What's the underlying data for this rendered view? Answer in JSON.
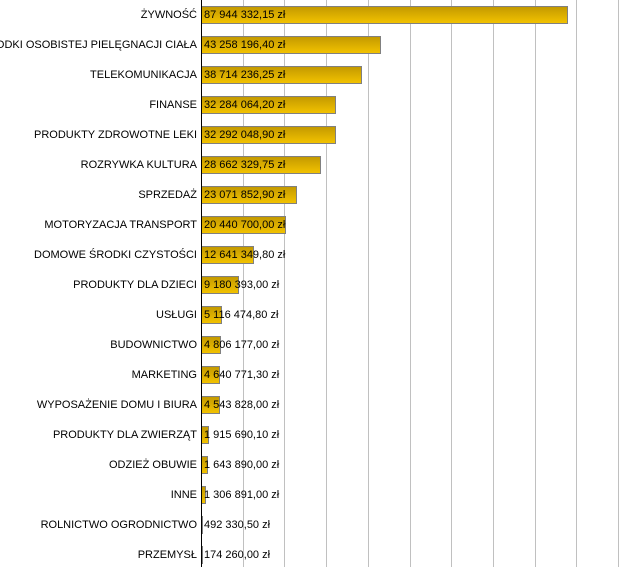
{
  "chart_data": {
    "type": "bar",
    "orientation": "horizontal",
    "title": "",
    "xlabel": "",
    "ylabel": "",
    "xlim": [
      0,
      100000000
    ],
    "grid": true,
    "grid_step": 10000000,
    "bar_color": "#e0b000",
    "categories": [
      "ŻYWNOŚĆ",
      "ŚRODKI OSOBISTEJ PIELĘGNACJI CIAŁA",
      "TELEKOMUNIKACJA",
      "FINANSE",
      "PRODUKTY ZDROWOTNE LEKI",
      "ROZRYWKA KULTURA",
      "SPRZEDAŻ",
      "MOTORYZACJA TRANSPORT",
      "DOMOWE ŚRODKI CZYSTOŚCI",
      "PRODUKTY DLA DZIECI",
      "USŁUGI",
      "BUDOWNICTWO",
      "MARKETING",
      "WYPOSAŻENIE DOMU I BIURA",
      "PRODUKTY DLA ZWIERZĄT",
      "ODZIEŻ OBUWIE",
      "INNE",
      "ROLNICTWO OGRODNICTWO",
      "PRZEMYSŁ"
    ],
    "values": [
      87944332.15,
      43258196.4,
      38714236.25,
      32284064.2,
      32292048.9,
      28662329.75,
      23071852.9,
      20440700.0,
      12641349.8,
      9180393.0,
      5116474.8,
      4806177.0,
      4640771.3,
      4543828.0,
      1915690.1,
      1643890.0,
      1306891.0,
      492330.5,
      174260.0
    ],
    "labels": [
      "87 944 332,15 zł",
      "43 258 196,40 zł",
      "38 714 236,25 zł",
      "32 284 064,20 zł",
      "32 292 048,90 zł",
      "28 662 329,75 zł",
      "23 071 852,90 zł",
      "20 440 700,00 zł",
      "12 641 349,80 zł",
      "9 180 393,00 zł",
      "5 116 474,80 zł",
      "4 806 177,00 zł",
      "4 640 771,30 zł",
      "4 543 828,00 zł",
      "1 915 690,10 zł",
      "1 643 890,00 zł",
      "1 306 891,00 zł",
      "492 330,50 zł",
      "174 260,00 zł"
    ]
  }
}
